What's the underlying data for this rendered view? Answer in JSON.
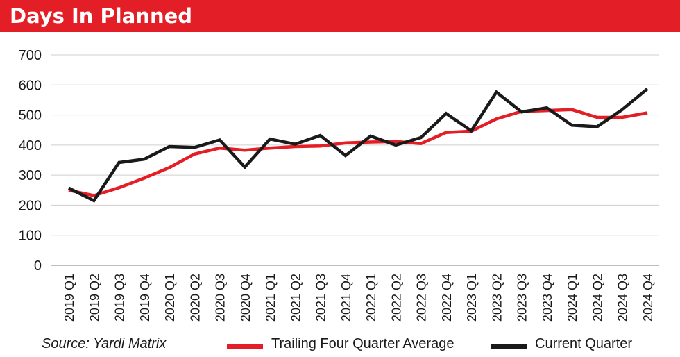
{
  "header": {
    "title": "Days In Planned"
  },
  "footer": {
    "source": "Source: Yardi Matrix"
  },
  "chart_data": {
    "type": "line",
    "title": "Days In Planned",
    "xlabel": "",
    "ylabel": "",
    "ylim": [
      0,
      700
    ],
    "y_ticks": [
      0,
      100,
      200,
      300,
      400,
      500,
      600,
      700
    ],
    "grid": true,
    "legend_position": "bottom",
    "categories": [
      "2019 Q1",
      "2019 Q2",
      "2019 Q3",
      "2019 Q4",
      "2020 Q1",
      "2020 Q2",
      "2020 Q3",
      "2020 Q4",
      "2021 Q1",
      "2021 Q2",
      "2021 Q3",
      "2021 Q4",
      "2022 Q1",
      "2022 Q2",
      "2022 Q3",
      "2022 Q4",
      "2023 Q1",
      "2023 Q2",
      "2023 Q3",
      "2023 Q4",
      "2024 Q1",
      "2024 Q2",
      "2024 Q3",
      "2024 Q4"
    ],
    "series": [
      {
        "name": "Trailing Four Quarter Average",
        "color": "#e41e26",
        "values": [
          250,
          232,
          258,
          290,
          325,
          370,
          390,
          383,
          390,
          395,
          397,
          407,
          410,
          412,
          405,
          442,
          446,
          487,
          512,
          515,
          518,
          492,
          492,
          507
        ]
      },
      {
        "name": "Current Quarter",
        "color": "#1a1a1a",
        "values": [
          257,
          215,
          342,
          353,
          395,
          392,
          417,
          327,
          420,
          403,
          432,
          365,
          430,
          400,
          425,
          505,
          447,
          576,
          510,
          524,
          466,
          461,
          518,
          587
        ]
      }
    ]
  }
}
